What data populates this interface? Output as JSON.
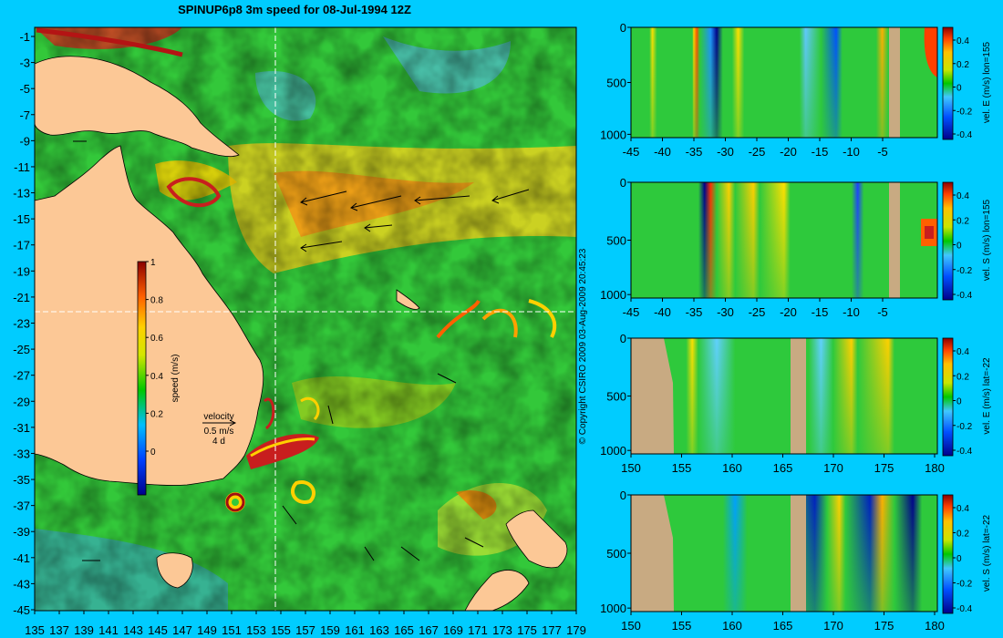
{
  "title": "SPINUP6p8 3m speed for 08-Jul-1994 12Z",
  "copyright": "© Copyright CSIRO 2009   03-Aug-2009 20:45:23",
  "colors": {
    "background": "#00ccff",
    "land": "#fcc896",
    "section_land": "#c8aa82",
    "crosshair": "#ffffff"
  },
  "map": {
    "lon_ticks": [
      "135",
      "137",
      "139",
      "141",
      "143",
      "145",
      "147",
      "149",
      "151",
      "153",
      "155",
      "157",
      "159",
      "161",
      "163",
      "165",
      "167",
      "169",
      "171",
      "173",
      "175",
      "177",
      "179"
    ],
    "lat_ticks": [
      "-1",
      "-3",
      "-5",
      "-7",
      "-9",
      "-11",
      "-13",
      "-15",
      "-17",
      "-19",
      "-21",
      "-23",
      "-25",
      "-27",
      "-29",
      "-31",
      "-33",
      "-35",
      "-37",
      "-39",
      "-41",
      "-43",
      "-45"
    ],
    "crosshair_lon": 155,
    "crosshair_lat": -22,
    "colorbar": {
      "label": "speed (m/s)",
      "ticks": [
        "1",
        "0.8",
        "0.6",
        "0.4",
        "0.2",
        "0"
      ]
    },
    "velocity_key": {
      "title": "velocity",
      "speed": "0.5 m/s",
      "duration": "4 d"
    }
  },
  "panels": [
    {
      "x_ticks": [
        "-45",
        "-40",
        "-35",
        "-30",
        "-25",
        "-20",
        "-15",
        "-10",
        "-5"
      ],
      "y_ticks": [
        "0",
        "500",
        "1000"
      ],
      "cb_ticks": [
        "0.4",
        "0.2",
        "0",
        "-0.2",
        "-0.4"
      ],
      "cb_label": "vel. E (m/s) lon=155"
    },
    {
      "x_ticks": [
        "-45",
        "-40",
        "-35",
        "-30",
        "-25",
        "-20",
        "-15",
        "-10",
        "-5"
      ],
      "y_ticks": [
        "0",
        "500",
        "1000"
      ],
      "cb_ticks": [
        "0.4",
        "0.2",
        "0",
        "-0.2",
        "-0.4"
      ],
      "cb_label": "vel. S (m/s) lon=155"
    },
    {
      "x_ticks": [
        "150",
        "155",
        "160",
        "165",
        "170",
        "175",
        "180"
      ],
      "y_ticks": [
        "0",
        "500",
        "1000"
      ],
      "cb_ticks": [
        "0.4",
        "0.2",
        "0",
        "-0.2",
        "-0.4"
      ],
      "cb_label": "vel. E (m/s) lat=-22"
    },
    {
      "x_ticks": [
        "150",
        "155",
        "160",
        "165",
        "170",
        "175",
        "180"
      ],
      "y_ticks": [
        "0",
        "500",
        "1000"
      ],
      "cb_ticks": [
        "0.4",
        "0.2",
        "0",
        "-0.2",
        "-0.4"
      ],
      "cb_label": "vel. S (m/s) lat=-22"
    }
  ]
}
